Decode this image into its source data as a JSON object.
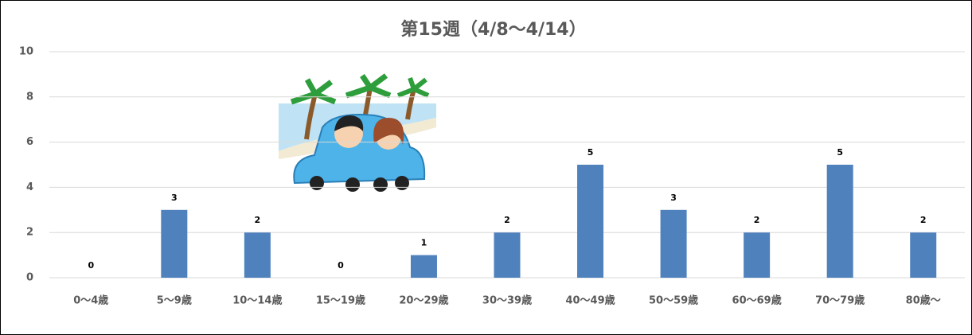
{
  "chart_data": {
    "type": "bar",
    "title": "第15週（4/8～4/14）",
    "categories": [
      "0～4歳",
      "5～9歳",
      "10～14歳",
      "15～19歳",
      "20～29歳",
      "30～39歳",
      "40～49歳",
      "50～59歳",
      "60～69歳",
      "70～79歳",
      "80歳～"
    ],
    "values": [
      0,
      3,
      2,
      0,
      1,
      2,
      5,
      3,
      2,
      5,
      2
    ],
    "color": "#4f81bd",
    "ylim": [
      0,
      10
    ],
    "yticks": [
      0,
      2,
      4,
      6,
      8,
      10
    ],
    "grid": true
  }
}
